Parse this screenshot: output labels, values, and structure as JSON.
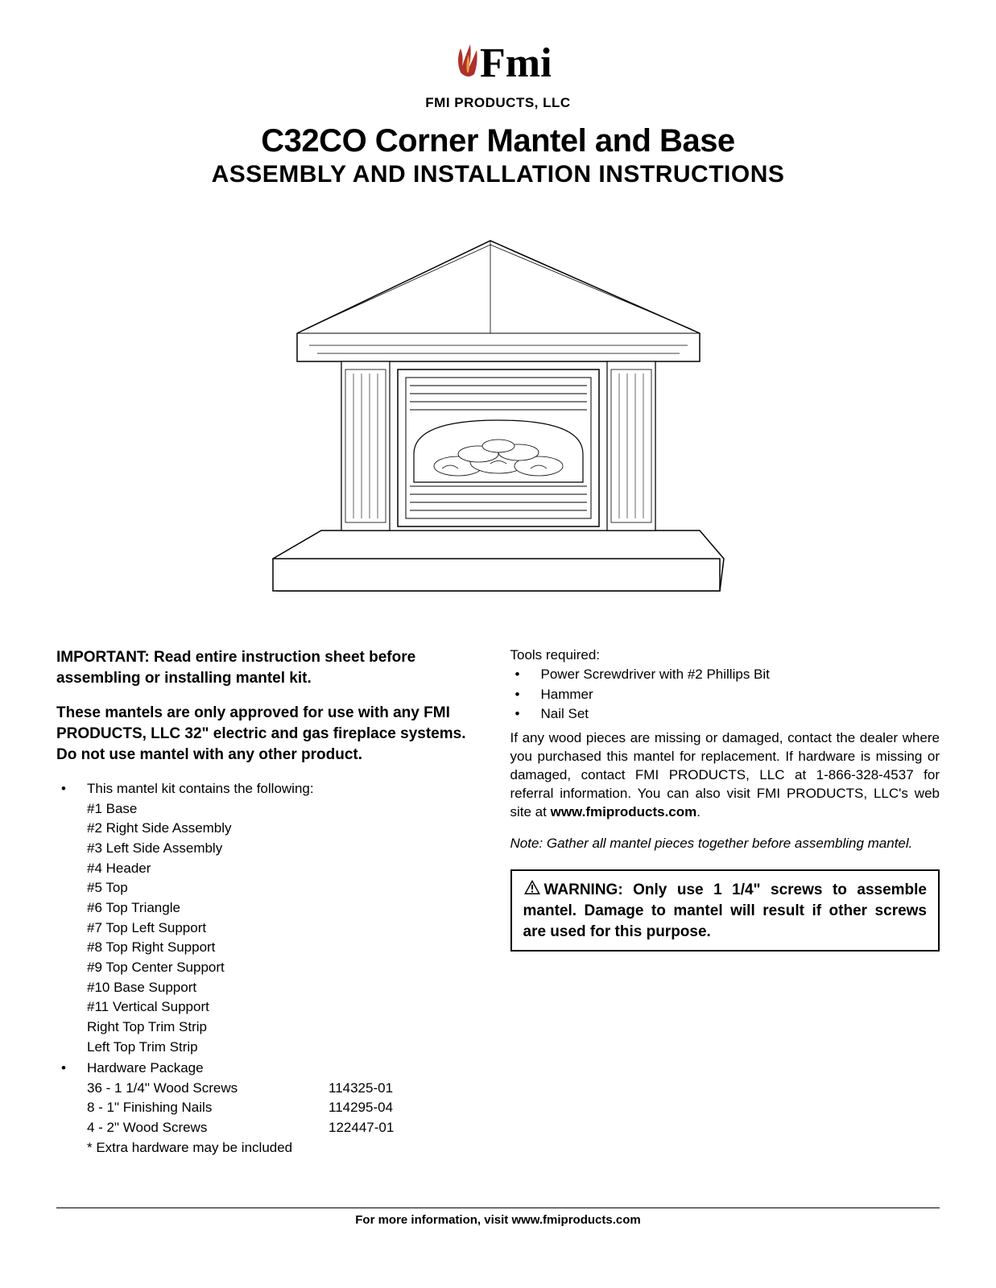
{
  "header": {
    "company": "FMI PRODUCTS, LLC",
    "product_title": "C32CO Corner Mantel and Base",
    "subtitle": "ASSEMBLY AND INSTALLATION INSTRUCTIONS"
  },
  "important": "IMPORTANT: Read entire instruction sheet before assembling or installing mantel kit.",
  "approval": "These mantels are only approved for use with any FMI PRODUCTS, LLC 32\" electric and gas fireplace systems. Do not use mantel with any other product.",
  "kit_intro": "This mantel kit contains the following:",
  "kit_items": [
    "#1 Base",
    "#2 Right Side Assembly",
    "#3 Left Side Assembly",
    "#4 Header",
    "#5 Top",
    "#6 Top Triangle",
    "#7 Top Left Support",
    "#8 Top Right Support",
    "#9 Top Center Support",
    "#10 Base Support",
    "#11 Vertical Support",
    "Right Top Trim Strip",
    "Left Top Trim Strip"
  ],
  "hardware_label": "Hardware Package",
  "hardware": [
    {
      "name": "36 - 1 1/4\" Wood Screws",
      "part": "114325-01"
    },
    {
      "name": "8 - 1\" Finishing Nails",
      "part": "114295-04"
    },
    {
      "name": "4 - 2\" Wood Screws",
      "part": "122447-01"
    }
  ],
  "hardware_note": "* Extra hardware may be included",
  "tools_header": "Tools required:",
  "tools": [
    "Power Screwdriver with #2 Phillips Bit",
    "Hammer",
    "Nail Set"
  ],
  "contact_text_1": "If any wood pieces are missing or damaged, contact the dealer where you purchased this mantel for replacement. If hardware is missing or damaged, contact FMI PRODUCTS, LLC at 1-866-328-4537 for referral information. You can also visit FMI PRODUCTS, LLC's web site at ",
  "contact_website": "www.fmiproducts.com",
  "contact_text_2": ".",
  "note": "Note: Gather all mantel pieces together before assembling mantel.",
  "warning": "WARNING: Only use 1 1/4\" screws to assemble mantel. Damage to mantel will result if other screws are used for this purpose.",
  "footer_1": "For more information, visit ",
  "footer_2": "www.fmiproducts.com"
}
